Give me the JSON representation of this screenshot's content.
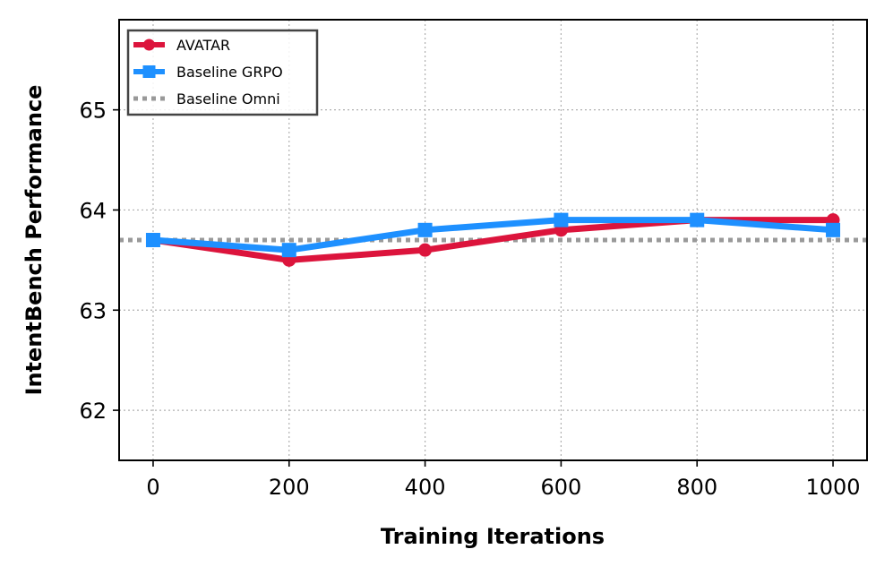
{
  "chart_data": {
    "type": "line",
    "title": "",
    "xlabel": "Training Iterations",
    "ylabel": "IntentBench Performance",
    "xlim": [
      -50,
      1050
    ],
    "ylim": [
      61.5,
      65.9
    ],
    "xticks": [
      0,
      200,
      400,
      600,
      800,
      1000
    ],
    "xtick_labels": [
      "0",
      "200",
      "400",
      "600",
      "800",
      "1000"
    ],
    "yticks": [
      62,
      63,
      64,
      65
    ],
    "ytick_labels": [
      "62",
      "63",
      "64",
      "65"
    ],
    "grid": true,
    "legend_position": "top-left",
    "series": [
      {
        "name": "AVATAR",
        "color": "#dc143c",
        "marker": "circle",
        "style": "solid",
        "x": [
          0,
          200,
          400,
          600,
          800,
          1000
        ],
        "values": [
          63.7,
          63.5,
          63.6,
          63.8,
          63.9,
          63.9
        ]
      },
      {
        "name": "Baseline GRPO",
        "color": "#1e90ff",
        "marker": "square",
        "style": "solid",
        "x": [
          0,
          200,
          400,
          600,
          800,
          1000
        ],
        "values": [
          63.7,
          63.6,
          63.8,
          63.9,
          63.9,
          63.8
        ]
      },
      {
        "name": "Baseline Omni",
        "color": "#999999",
        "marker": "none",
        "style": "dotted",
        "hline": 63.7
      }
    ]
  }
}
